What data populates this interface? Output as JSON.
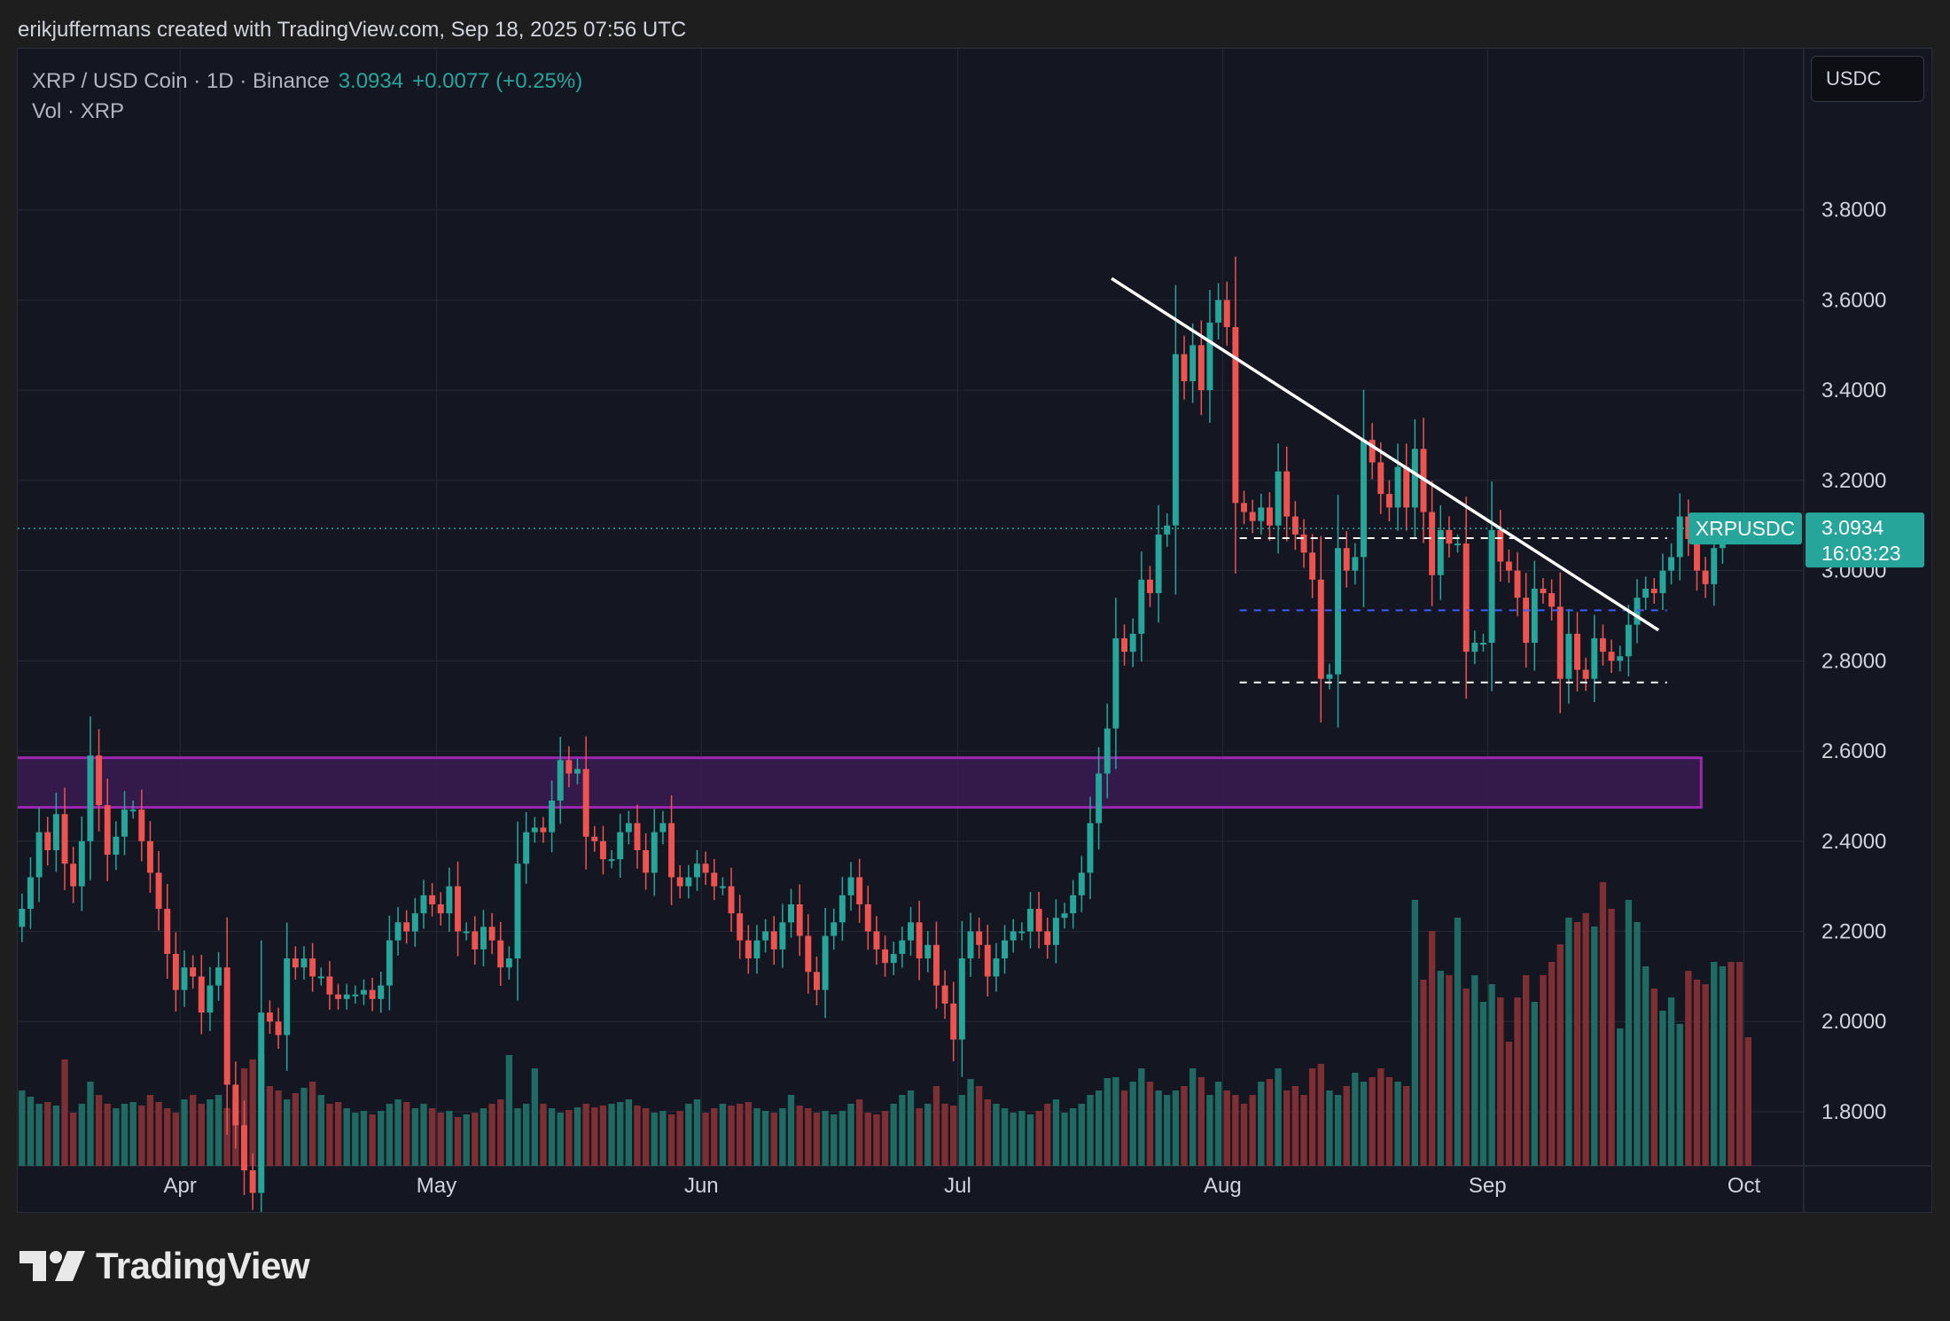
{
  "header": {
    "text": "erikjuffermans created with TradingView.com, Sep 18, 2025 07:56 UTC"
  },
  "legend": {
    "symbol_line": "XRP / USD Coin · 1D · Binance",
    "price": "3.0934",
    "change": "+0.0077 (+0.25%)",
    "volume_line": "Vol · XRP"
  },
  "currency_button": "USDC",
  "price_tag": {
    "symbol": "XRPUSDC",
    "price": "3.0934",
    "countdown": "16:03:23"
  },
  "brand": {
    "logo_text": "TradingView"
  },
  "colors": {
    "up": "#26a69a",
    "down": "#ef5350",
    "volume_up": "#1f6b64",
    "volume_down": "#7d2f33",
    "zone_fill": "#3a1b52",
    "zone_border": "#9c27b0",
    "trendline": "#ffffff",
    "dashed_level": "#ffffff",
    "blue_level": "#3d5afe",
    "grid": "#262a36",
    "background": "#141722"
  },
  "chart_data": {
    "type": "candlestick",
    "title": "XRP / USD Coin · 1D · Binance",
    "timeframe": "1D",
    "x_range": [
      "2025-03-13",
      "2025-10-08"
    ],
    "ylim": [
      1.68,
      4.0
    ],
    "y_scale": "linear",
    "grid": true,
    "y_ticks": [
      "3.8000",
      "3.6000",
      "3.4000",
      "3.2000",
      "3.0000",
      "2.8000",
      "2.6000",
      "2.4000",
      "2.2000",
      "2.0000",
      "1.8000"
    ],
    "x_ticks": [
      {
        "label": "Apr",
        "date": "2025-04-01"
      },
      {
        "label": "May",
        "date": "2025-05-01"
      },
      {
        "label": "Jun",
        "date": "2025-06-01"
      },
      {
        "label": "Jul",
        "date": "2025-07-01"
      },
      {
        "label": "Aug",
        "date": "2025-08-01"
      },
      {
        "label": "Sep",
        "date": "2025-09-01"
      },
      {
        "label": "Oct",
        "date": "2025-10-01"
      }
    ],
    "last_price": 3.0934,
    "closes": [
      2.25,
      2.32,
      2.42,
      2.38,
      2.46,
      2.35,
      2.3,
      2.4,
      2.59,
      2.48,
      2.37,
      2.41,
      2.47,
      2.47,
      2.4,
      2.33,
      2.25,
      2.15,
      2.07,
      2.12,
      2.1,
      2.02,
      2.08,
      2.12,
      1.86,
      1.77,
      1.67,
      1.62,
      2.02,
      2.0,
      1.97,
      2.14,
      2.12,
      2.14,
      2.1,
      2.1,
      2.06,
      2.05,
      2.06,
      2.06,
      2.07,
      2.05,
      2.08,
      2.18,
      2.22,
      2.2,
      2.24,
      2.28,
      2.26,
      2.24,
      2.3,
      2.2,
      2.2,
      2.16,
      2.21,
      2.18,
      2.12,
      2.14,
      2.35,
      2.42,
      2.43,
      2.42,
      2.49,
      2.58,
      2.55,
      2.56,
      2.41,
      2.4,
      2.36,
      2.36,
      2.42,
      2.44,
      2.38,
      2.33,
      2.42,
      2.44,
      2.32,
      2.3,
      2.32,
      2.35,
      2.33,
      2.3,
      2.3,
      2.24,
      2.18,
      2.14,
      2.18,
      2.2,
      2.16,
      2.22,
      2.26,
      2.19,
      2.11,
      2.07,
      2.19,
      2.22,
      2.28,
      2.32,
      2.26,
      2.2,
      2.16,
      2.13,
      2.15,
      2.18,
      2.22,
      2.14,
      2.17,
      2.08,
      2.04,
      1.96,
      2.14,
      2.2,
      2.17,
      2.1,
      2.14,
      2.18,
      2.2,
      2.2,
      2.25,
      2.2,
      2.17,
      2.23,
      2.24,
      2.28,
      2.33,
      2.44,
      2.55,
      2.65,
      2.85,
      2.82,
      2.86,
      2.98,
      2.95,
      3.08,
      3.1,
      3.48,
      3.42,
      3.5,
      3.4,
      3.55,
      3.6,
      3.54,
      3.15,
      3.13,
      3.11,
      3.14,
      3.1,
      3.22,
      3.12,
      3.08,
      3.04,
      2.98,
      2.76,
      2.77,
      3.05,
      3.0,
      3.03,
      3.29,
      3.24,
      3.17,
      3.14,
      3.23,
      3.14,
      3.27,
      3.13,
      2.99,
      3.09,
      3.06,
      3.06,
      2.82,
      2.84,
      2.84,
      3.09,
      3.02,
      3.0,
      2.94,
      2.84,
      2.96,
      2.95,
      2.92,
      2.76,
      2.86,
      2.78,
      2.76,
      2.85,
      2.82,
      2.8,
      2.81,
      2.88,
      2.94,
      2.96,
      2.95,
      3.0,
      3.03,
      3.12,
      3.07,
      3.0,
      2.97,
      3.05,
      3.0934
    ],
    "volumes": [
      85,
      78,
      70,
      72,
      68,
      120,
      60,
      70,
      95,
      80,
      70,
      65,
      70,
      72,
      68,
      80,
      72,
      65,
      60,
      75,
      80,
      70,
      75,
      80,
      65,
      75,
      110,
      120,
      125,
      90,
      85,
      75,
      82,
      88,
      95,
      80,
      70,
      72,
      65,
      60,
      62,
      58,
      62,
      70,
      75,
      72,
      65,
      70,
      65,
      60,
      62,
      55,
      58,
      60,
      65,
      70,
      75,
      125,
      65,
      70,
      110,
      70,
      65,
      60,
      63,
      66,
      70,
      66,
      68,
      70,
      72,
      75,
      68,
      65,
      60,
      62,
      58,
      62,
      70,
      75,
      60,
      65,
      70,
      68,
      70,
      72,
      65,
      62,
      60,
      65,
      80,
      68,
      65,
      60,
      62,
      58,
      62,
      70,
      75,
      60,
      58,
      62,
      70,
      80,
      85,
      65,
      70,
      90,
      70,
      68,
      80,
      98,
      90,
      75,
      70,
      65,
      60,
      62,
      58,
      62,
      70,
      75,
      60,
      65,
      70,
      80,
      85,
      99,
      100,
      85,
      95,
      110,
      95,
      85,
      80,
      85,
      90,
      110,
      100,
      80,
      95,
      85,
      80,
      70,
      80,
      95,
      98,
      110,
      85,
      90,
      80,
      110,
      115,
      85,
      80,
      90,
      105,
      95,
      100,
      110,
      100,
      95,
      90,
      300,
      210,
      265,
      220,
      215,
      280,
      200,
      215,
      185,
      205,
      190,
      140,
      190,
      215,
      185,
      215,
      230,
      250,
      280,
      275,
      285,
      270,
      320,
      290,
      155,
      300,
      275,
      225,
      200,
      175,
      190,
      160,
      220,
      210,
      205,
      230,
      225,
      230,
      230,
      145
    ],
    "zones": [
      {
        "kind": "resistance-zone",
        "top": 2.585,
        "bottom": 2.475,
        "from": "2025-03-13",
        "to": "2025-09-26"
      }
    ],
    "trendlines": [
      {
        "from": {
          "date": "2025-07-19",
          "price": 3.648
        },
        "to": {
          "date": "2025-09-21",
          "price": 2.868
        }
      }
    ],
    "levels": [
      {
        "price": 3.072,
        "from": "2025-08-03",
        "to": "2025-09-22",
        "style": "dashed-white"
      },
      {
        "price": 2.912,
        "from": "2025-08-03",
        "to": "2025-09-22",
        "style": "dashed-blue"
      },
      {
        "price": 2.752,
        "from": "2025-08-03",
        "to": "2025-09-22",
        "style": "dashed-white"
      }
    ]
  }
}
